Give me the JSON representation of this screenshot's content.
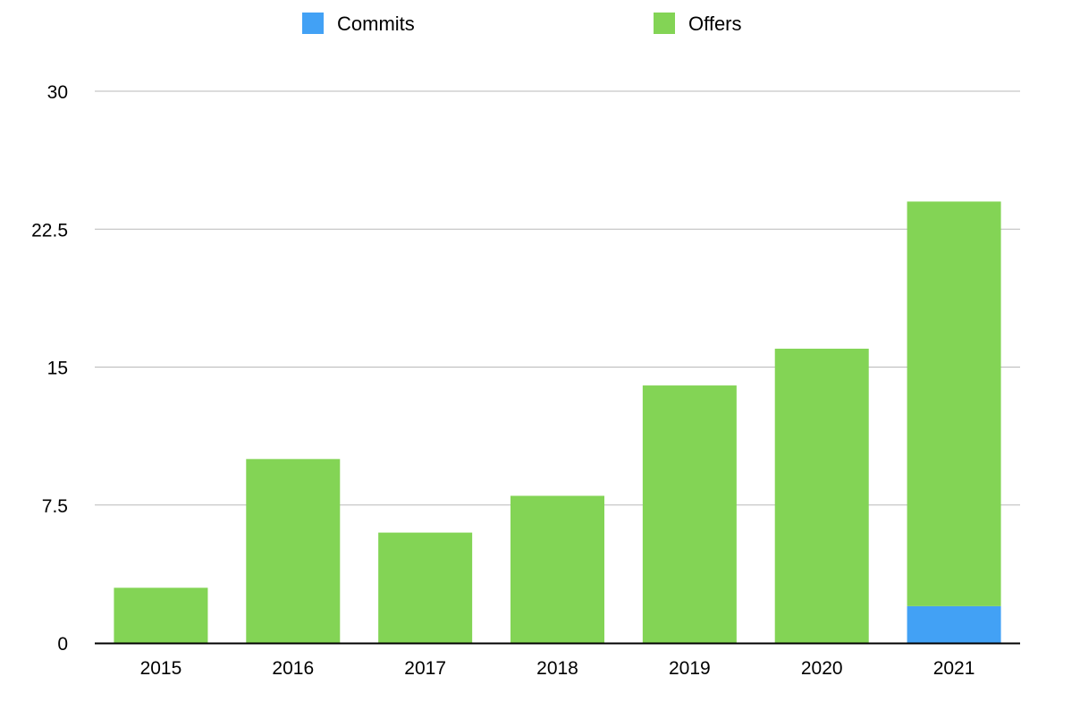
{
  "chart_data": {
    "type": "bar",
    "stacked": true,
    "title": "",
    "xlabel": "",
    "ylabel": "",
    "categories": [
      "2015",
      "2016",
      "2017",
      "2018",
      "2019",
      "2020",
      "2021"
    ],
    "series": [
      {
        "name": "Commits",
        "color": "#42a1f5",
        "values": [
          0,
          0,
          0,
          0,
          0,
          0,
          2
        ]
      },
      {
        "name": "Offers",
        "color": "#83d455",
        "values": [
          3,
          10,
          6,
          8,
          14,
          16,
          22
        ]
      }
    ],
    "ylim": [
      0,
      30
    ],
    "yticks": [
      "0",
      "7.5",
      "15",
      "22.5",
      "30"
    ],
    "grid": true,
    "legend_position": "top-center"
  }
}
